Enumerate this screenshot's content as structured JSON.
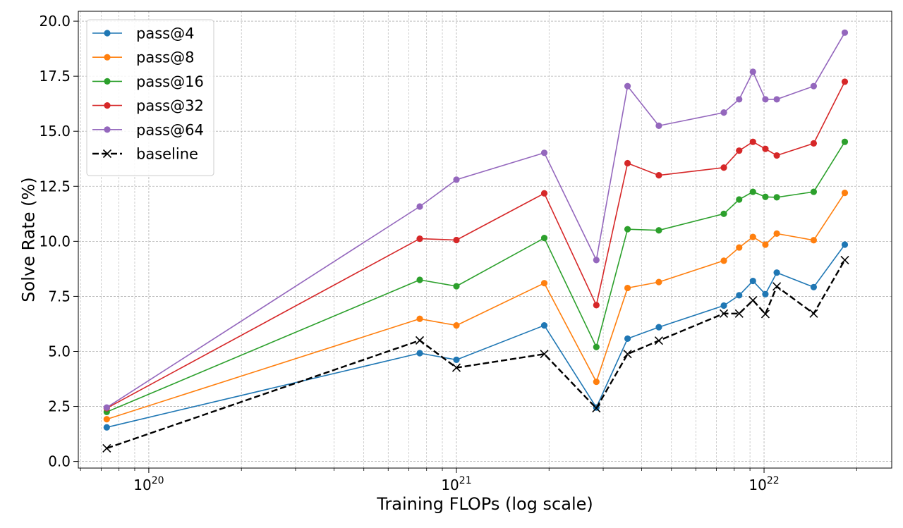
{
  "chart_data": {
    "type": "line",
    "title": "",
    "xlabel": "Training FLOPs (log scale)",
    "ylabel": "Solve Rate (%)",
    "xscale": "log",
    "xlim": [
      5.9e+19,
      2.6e+22
    ],
    "ylim": [
      -0.3,
      20.45
    ],
    "grid": true,
    "legend_position": "top-left",
    "x_ticks": [
      {
        "value": 1e+20,
        "base": "10",
        "exp": "20"
      },
      {
        "value": 1e+21,
        "base": "10",
        "exp": "21"
      },
      {
        "value": 1e+22,
        "base": "10",
        "exp": "22"
      }
    ],
    "y_ticks": [
      {
        "value": 0.0,
        "label": "0.0"
      },
      {
        "value": 2.5,
        "label": "2.5"
      },
      {
        "value": 5.0,
        "label": "5.0"
      },
      {
        "value": 7.5,
        "label": "7.5"
      },
      {
        "value": 10.0,
        "label": "10.0"
      },
      {
        "value": 12.5,
        "label": "12.5"
      },
      {
        "value": 15.0,
        "label": "15.0"
      },
      {
        "value": 17.5,
        "label": "17.5"
      },
      {
        "value": 20.0,
        "label": "20.0"
      }
    ],
    "x": [
      7.3e+19,
      7.6e+20,
      1e+21,
      1.93e+21,
      2.85e+21,
      3.6e+21,
      4.55e+21,
      7.4e+21,
      8.3e+21,
      9.2e+21,
      1.01e+22,
      1.1e+22,
      1.45e+22,
      1.83e+22
    ],
    "series": [
      {
        "name": "pass@4",
        "color": "#1f77b4",
        "style": "solid",
        "marker": "circle",
        "values": [
          1.55,
          4.92,
          4.62,
          6.18,
          2.45,
          5.58,
          6.1,
          7.08,
          7.55,
          8.2,
          7.6,
          8.58,
          7.92,
          9.85
        ]
      },
      {
        "name": "pass@8",
        "color": "#ff7f0e",
        "style": "solid",
        "marker": "circle",
        "values": [
          1.92,
          6.48,
          6.18,
          8.1,
          3.62,
          7.88,
          8.15,
          9.12,
          9.72,
          10.2,
          9.85,
          10.35,
          10.05,
          12.2
        ]
      },
      {
        "name": "pass@16",
        "color": "#2ca02c",
        "style": "solid",
        "marker": "circle",
        "values": [
          2.25,
          8.25,
          7.96,
          10.15,
          5.2,
          10.55,
          10.5,
          11.25,
          11.9,
          12.25,
          12.02,
          12.0,
          12.25,
          14.52
        ]
      },
      {
        "name": "pass@32",
        "color": "#d62728",
        "style": "solid",
        "marker": "circle",
        "values": [
          2.42,
          10.12,
          10.06,
          12.18,
          7.1,
          13.55,
          13.0,
          13.35,
          14.12,
          14.52,
          14.2,
          13.9,
          14.45,
          17.25
        ]
      },
      {
        "name": "pass@64",
        "color": "#9467bd",
        "style": "solid",
        "marker": "circle",
        "values": [
          2.45,
          11.58,
          12.8,
          14.02,
          9.15,
          17.05,
          15.25,
          15.85,
          16.45,
          17.7,
          16.45,
          16.45,
          17.05,
          19.48
        ]
      },
      {
        "name": "baseline",
        "color": "#000000",
        "style": "dashed",
        "marker": "x",
        "values": [
          0.6,
          5.5,
          4.26,
          4.88,
          2.42,
          4.88,
          5.49,
          6.72,
          6.72,
          7.32,
          6.7,
          7.95,
          6.72,
          9.15
        ]
      }
    ]
  }
}
